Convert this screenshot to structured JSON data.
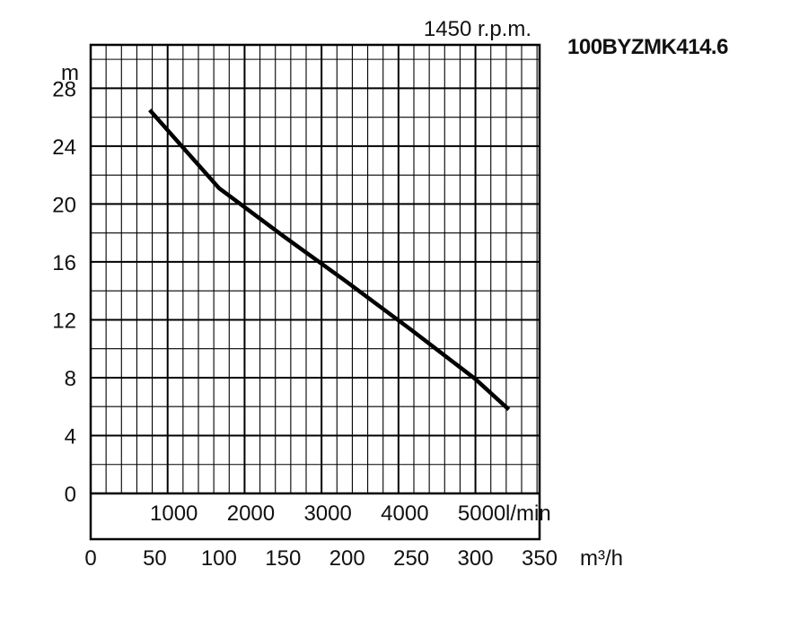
{
  "chart_data": {
    "type": "line",
    "title": "100BYZMK414.6",
    "subtitle": "1450 r.p.m.",
    "ylabel": "m",
    "xlabel": "m³/h",
    "x2label": "l/min",
    "ylim": [
      0,
      31
    ],
    "xlim": [
      0,
      350
    ],
    "y_ticks": [
      0,
      4,
      8,
      12,
      16,
      20,
      24,
      28
    ],
    "x_ticks": [
      0,
      50,
      100,
      150,
      200,
      250,
      300,
      350
    ],
    "x2_ticks": [
      1000,
      2000,
      3000,
      4000,
      5000
    ],
    "grid": true,
    "series": [
      {
        "color": "#000000",
        "x": [
          46,
          100,
          150,
          200,
          250,
          300,
          326
        ],
        "y": [
          26.5,
          21.1,
          17.8,
          14.6,
          11.3,
          7.9,
          5.8
        ]
      }
    ]
  }
}
